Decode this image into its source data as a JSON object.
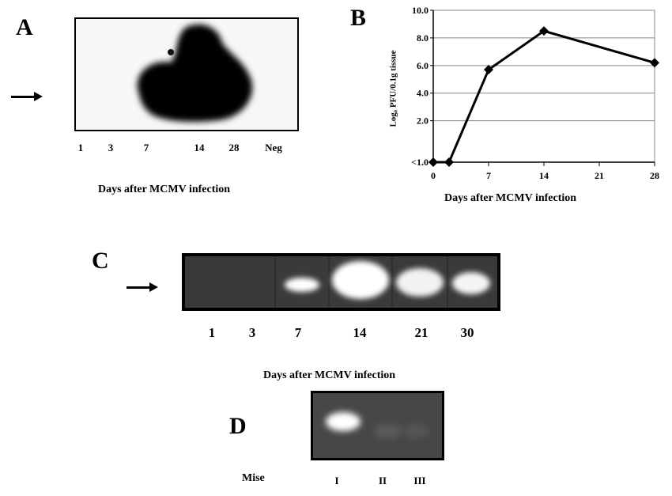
{
  "panel_a": {
    "letter": "A",
    "lanes": [
      "1",
      "3",
      "7",
      "14",
      "28",
      "Neg"
    ],
    "xlabel": "Days after MCMV infection"
  },
  "panel_b": {
    "letter": "B",
    "xlabel": "Days after MCMV infection",
    "ylabel": "Log₀ PFU/0.1g tissue"
  },
  "panel_c": {
    "letter": "C",
    "lanes": [
      "1",
      "3",
      "7",
      "14",
      "21",
      "30"
    ],
    "xlabel": "Days after MCMV infection"
  },
  "panel_d": {
    "letter": "D",
    "row_label": "Mise",
    "lanes": [
      "I",
      "II",
      "III"
    ]
  },
  "chart_data": {
    "type": "line",
    "x": [
      0,
      2,
      7,
      14,
      28
    ],
    "y": [
      -1.0,
      -1.0,
      5.7,
      8.5,
      6.2
    ],
    "xticks": [
      "0",
      "7",
      "14",
      "21",
      "28"
    ],
    "yticks": [
      "<1.0",
      "2.0",
      "4.0",
      "6.0",
      "8.0",
      "10.0"
    ],
    "xlim": [
      0,
      28
    ],
    "ylim": [
      -1,
      10
    ],
    "xlabel": "Days after MCMV infection",
    "ylabel": "Log₀ PFU/0.1g tissue",
    "grid": "horizontal",
    "line_color": "#000000",
    "marker": "diamond"
  }
}
